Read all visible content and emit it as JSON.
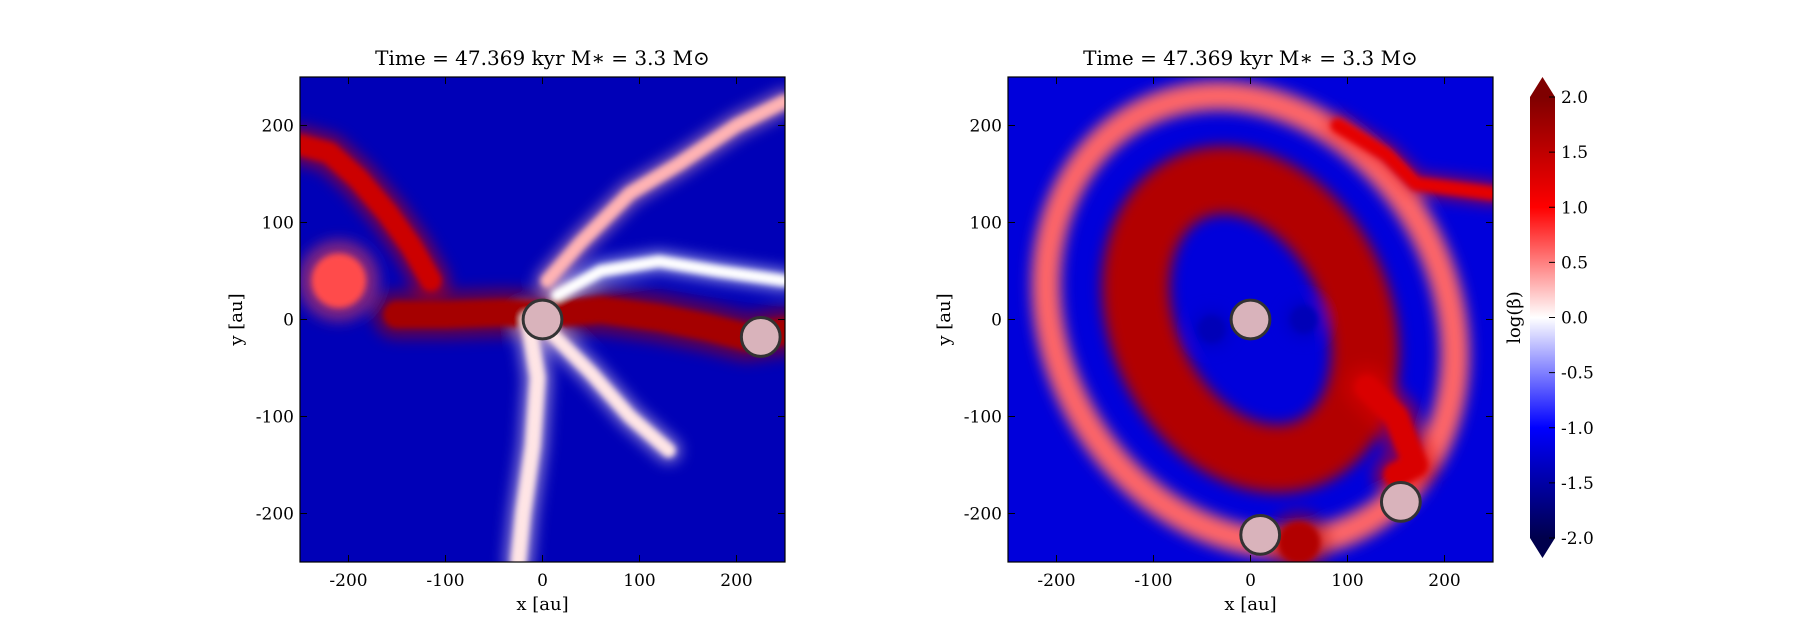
{
  "chart_data": [
    {
      "type": "heatmap",
      "title": "Time = 47.369 kyr    M$_*$ = 3.3 M$_\\odot$",
      "title_display": "Time = 47.369 kyr    M∗ = 3.3 M⊙",
      "xlabel": "x [au]",
      "ylabel": "y [au]",
      "xlim": [
        -250,
        250
      ],
      "ylim": [
        -250,
        250
      ],
      "xticks": [
        -200,
        -100,
        0,
        100,
        200
      ],
      "yticks": [
        -200,
        -100,
        0,
        100,
        200
      ],
      "xtick_labels": [
        "-200",
        "-100",
        "0",
        "100",
        "200"
      ],
      "ytick_labels": [
        "-200",
        "-100",
        "0",
        "100",
        "200"
      ],
      "field": "log(beta)",
      "background_value": -1.4,
      "structures": [
        {
          "kind": "filament",
          "value": 1.7,
          "width": 28,
          "path": [
            [
              -150,
              5
            ],
            [
              -100,
              5
            ],
            [
              -40,
              7
            ],
            [
              0,
              5
            ],
            [
              60,
              10
            ],
            [
              120,
              2
            ],
            [
              170,
              -8
            ],
            [
              210,
              -18
            ],
            [
              250,
              -12
            ]
          ]
        },
        {
          "kind": "filament",
          "value": 1.4,
          "width": 22,
          "path": [
            [
              -250,
              180
            ],
            [
              -220,
              172
            ],
            [
              -190,
              145
            ],
            [
              -160,
              110
            ],
            [
              -135,
              75
            ],
            [
              -115,
              40
            ]
          ]
        },
        {
          "kind": "blob",
          "value": 0.7,
          "center": [
            -210,
            40
          ],
          "radius": 28
        },
        {
          "kind": "filament",
          "value": 0.1,
          "width": 16,
          "path": [
            [
              -15,
              0
            ],
            [
              -5,
              -60
            ],
            [
              -10,
              -130
            ],
            [
              -20,
              -200
            ],
            [
              -25,
              -250
            ]
          ]
        },
        {
          "kind": "filament",
          "value": 0.1,
          "width": 14,
          "path": [
            [
              10,
              -15
            ],
            [
              50,
              -55
            ],
            [
              90,
              -100
            ],
            [
              130,
              -135
            ]
          ]
        },
        {
          "kind": "filament",
          "value": 0.3,
          "width": 14,
          "path": [
            [
              5,
              40
            ],
            [
              40,
              80
            ],
            [
              90,
              130
            ],
            [
              140,
              160
            ],
            [
              200,
              200
            ],
            [
              250,
              225
            ]
          ]
        },
        {
          "kind": "filament",
          "value": 0.0,
          "width": 12,
          "path": [
            [
              15,
              25
            ],
            [
              60,
              50
            ],
            [
              120,
              60
            ],
            [
              180,
              50
            ],
            [
              250,
              40
            ]
          ]
        }
      ],
      "sinks": [
        {
          "x": 0,
          "y": 0,
          "r": 20
        },
        {
          "x": 225,
          "y": -18,
          "r": 20
        }
      ]
    },
    {
      "type": "heatmap",
      "title": "Time = 47.369 kyr    M$_*$ = 3.3 M$_\\odot$",
      "title_display": "Time = 47.369 kyr    M∗ = 3.3 M⊙",
      "xlabel": "x [au]",
      "ylabel": "y [au]",
      "xlim": [
        -250,
        250
      ],
      "ylim": [
        -250,
        250
      ],
      "xticks": [
        -200,
        -100,
        0,
        100,
        200
      ],
      "yticks": [
        -200,
        -100,
        0,
        100,
        200
      ],
      "xtick_labels": [
        "-200",
        "-100",
        "0",
        "100",
        "200"
      ],
      "ytick_labels": [
        "-200",
        "-100",
        "0",
        "100",
        "200"
      ],
      "field": "log(beta)",
      "background_value": -1.2,
      "structures": [
        {
          "kind": "ring",
          "value": 1.6,
          "center": [
            0,
            0
          ],
          "rx": 110,
          "ry": 150,
          "rotate": -25,
          "width": 70
        },
        {
          "kind": "ring",
          "value": 0.6,
          "center": [
            0,
            0
          ],
          "rx": 200,
          "ry": 240,
          "rotate": -30,
          "width": 30
        },
        {
          "kind": "blob",
          "value": -1.4,
          "center": [
            -40,
            -10
          ],
          "radius": 14
        },
        {
          "kind": "blob",
          "value": -1.4,
          "center": [
            55,
            0
          ],
          "radius": 14
        },
        {
          "kind": "filament",
          "value": 1.3,
          "width": 26,
          "path": [
            [
              120,
              -70
            ],
            [
              150,
              -100
            ],
            [
              170,
              -150
            ],
            [
              150,
              -160
            ]
          ]
        },
        {
          "kind": "filament",
          "value": 1.2,
          "width": 14,
          "path": [
            [
              90,
              200
            ],
            [
              140,
              170
            ],
            [
              170,
              140
            ],
            [
              250,
              130
            ]
          ]
        },
        {
          "kind": "blob",
          "value": 1.6,
          "center": [
            50,
            -230
          ],
          "radius": 22
        }
      ],
      "sinks": [
        {
          "x": 0,
          "y": 0,
          "r": 20
        },
        {
          "x": 10,
          "y": -222,
          "r": 20
        },
        {
          "x": 155,
          "y": -188,
          "r": 20
        }
      ]
    }
  ],
  "colorbar": {
    "label": "log(β)",
    "min": -2.0,
    "max": 2.0,
    "ticks": [
      2.0,
      1.5,
      1.0,
      0.5,
      0.0,
      -0.5,
      -1.0,
      -1.5,
      -2.0
    ],
    "tick_labels": [
      "2.0",
      "1.5",
      "1.0",
      "0.5",
      "0.0",
      "-0.5",
      "-1.0",
      "-1.5",
      "-2.0"
    ],
    "extend": "both",
    "colormap": "seismic",
    "colors": {
      "low": "#00004c",
      "mid": "#ffffff",
      "high": "#7f0000"
    }
  }
}
